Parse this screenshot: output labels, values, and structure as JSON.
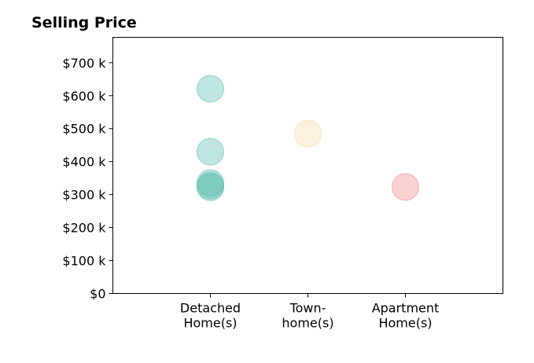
{
  "chart_data": {
    "type": "scatter",
    "title": "Selling Price",
    "xlabel": "",
    "ylabel": "",
    "categories": [
      [
        "Detached",
        "Home(s)"
      ],
      [
        "Town-",
        "home(s)"
      ],
      [
        "Apartment",
        "Home(s)"
      ]
    ],
    "category_colors": [
      "#5cbfb0",
      "#f5dca8",
      "#f28a92"
    ],
    "y_ticks": [
      0,
      100000,
      200000,
      300000,
      400000,
      500000,
      600000,
      700000
    ],
    "y_tick_labels": [
      "$0",
      "$100 k",
      "$200 k",
      "$300 k",
      "$400 k",
      "$500 k",
      "$600 k",
      "$700 k"
    ],
    "xlim": [
      -1,
      3
    ],
    "ylim": [
      0,
      777000
    ],
    "grid": false,
    "points": [
      {
        "category": 0,
        "y": 621000
      },
      {
        "category": 0,
        "y": 430000
      },
      {
        "category": 0,
        "y": 335000
      },
      {
        "category": 0,
        "y": 327000
      },
      {
        "category": 0,
        "y": 322000
      },
      {
        "category": 1,
        "y": 485000
      },
      {
        "category": 2,
        "y": 323000
      }
    ]
  }
}
